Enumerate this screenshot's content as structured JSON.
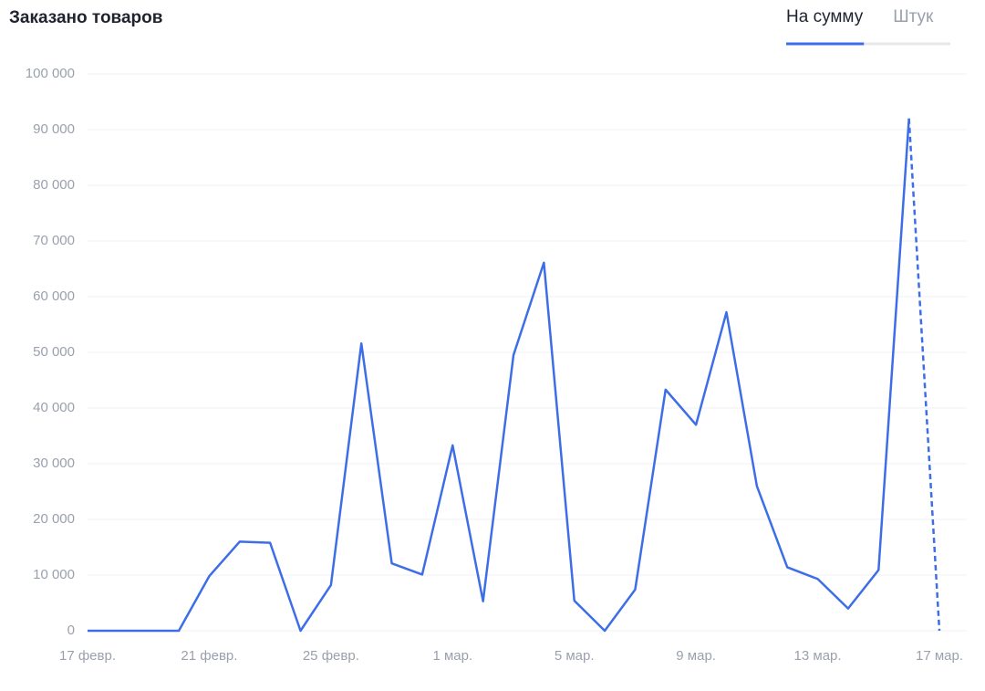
{
  "chart_data": {
    "type": "line",
    "title": "Заказано товаров",
    "tabs": [
      {
        "label": "На сумму",
        "active": true
      },
      {
        "label": "Штук",
        "active": false
      }
    ],
    "categories": [
      "17 февр.",
      null,
      null,
      null,
      "21 февр.",
      null,
      null,
      null,
      "25 февр.",
      null,
      null,
      null,
      "1 мар.",
      null,
      null,
      null,
      "5 мар.",
      null,
      null,
      null,
      "9 мар.",
      null,
      null,
      null,
      "13 мар.",
      null,
      null,
      null,
      "17 мар."
    ],
    "series": [
      {
        "name": "На сумму",
        "color": "#3d6ee8",
        "dashed_tail": 1,
        "values": [
          0,
          0,
          0,
          0,
          9800,
          16000,
          15800,
          0,
          8200,
          51600,
          12100,
          10100,
          33300,
          5300,
          49500,
          66100,
          5400,
          0,
          7400,
          43300,
          37000,
          57200,
          26000,
          11400,
          9300,
          4000,
          10900,
          92000,
          0
        ]
      }
    ],
    "ylim": [
      0,
      100000
    ],
    "yticks": [
      0,
      {
        "value": 10000,
        "label": "10 000"
      },
      {
        "value": 20000,
        "label": "20 000"
      },
      {
        "value": 30000,
        "label": "30 000"
      },
      {
        "value": 40000,
        "label": "40 000"
      },
      {
        "value": 50000,
        "label": "50 000"
      },
      {
        "value": 60000,
        "label": "60 000"
      },
      {
        "value": 70000,
        "label": "70 000"
      },
      {
        "value": 80000,
        "label": "80 000"
      },
      {
        "value": 90000,
        "label": "90 000"
      },
      {
        "value": 100000,
        "label": "100 000"
      }
    ],
    "grid": true
  }
}
